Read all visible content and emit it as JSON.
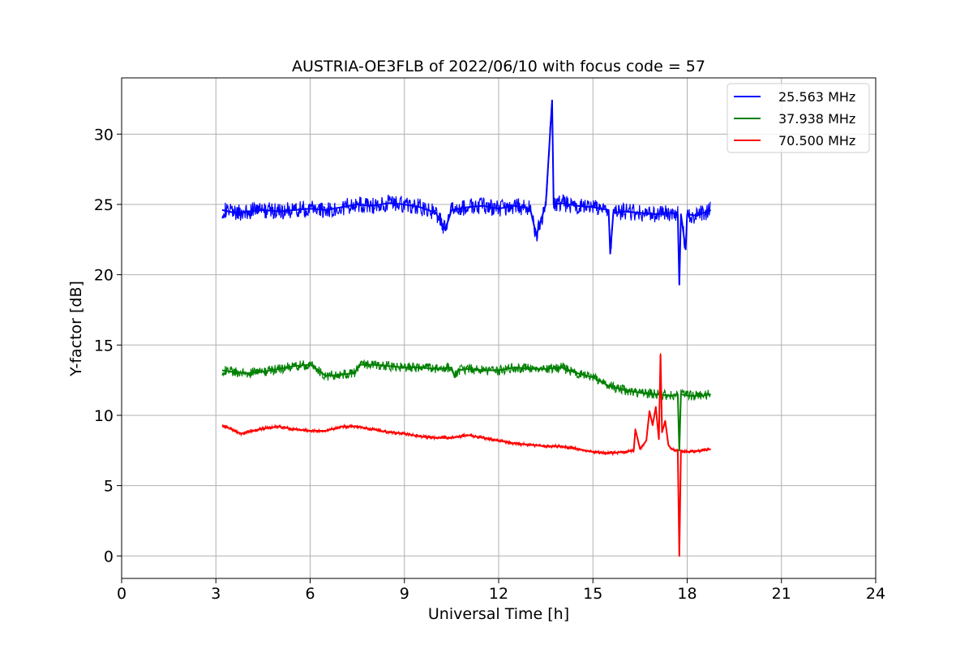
{
  "chart_data": {
    "type": "line",
    "title": "AUSTRIA-OE3FLB of 2022/06/10 with focus code = 57",
    "xlabel": "Universal Time [h]",
    "ylabel": "Y-factor [dB]",
    "xlim": [
      0,
      24
    ],
    "ylim": [
      -1.6,
      34
    ],
    "xticks": [
      0,
      3,
      6,
      9,
      12,
      15,
      18,
      21,
      24
    ],
    "yticks": [
      0,
      5,
      10,
      15,
      20,
      25,
      30
    ],
    "grid": true,
    "legend_position": "top-right",
    "series": [
      {
        "name": "25.563 MHz",
        "color": "#0000ff",
        "x": [
          3.2,
          3.6,
          4.0,
          4.5,
          5.0,
          5.5,
          6.0,
          6.5,
          7.0,
          7.5,
          8.0,
          8.5,
          9.0,
          9.5,
          10.0,
          10.3,
          10.5,
          11.0,
          11.5,
          12.0,
          12.5,
          13.0,
          13.2,
          13.5,
          13.7,
          13.75,
          14.0,
          14.5,
          15.0,
          15.5,
          15.55,
          15.65,
          16.0,
          16.5,
          17.0,
          17.5,
          17.7,
          17.75,
          17.8,
          17.95,
          18.0,
          18.3,
          18.75
        ],
        "y": [
          24.6,
          24.4,
          24.5,
          24.6,
          24.5,
          24.6,
          24.7,
          24.6,
          24.8,
          25.0,
          24.9,
          25.1,
          25.0,
          24.8,
          24.4,
          23.2,
          24.6,
          24.8,
          24.9,
          24.7,
          24.9,
          24.7,
          22.8,
          25.0,
          32.4,
          25.0,
          25.1,
          24.9,
          24.8,
          24.6,
          21.5,
          24.4,
          24.5,
          24.4,
          24.3,
          24.4,
          24.3,
          19.3,
          24.3,
          21.8,
          24.3,
          24.2,
          24.6
        ]
      },
      {
        "name": "37.938 MHz",
        "color": "#008000",
        "x": [
          3.2,
          3.5,
          4.0,
          4.5,
          5.0,
          5.5,
          6.0,
          6.2,
          6.5,
          7.0,
          7.4,
          7.6,
          8.0,
          8.5,
          9.0,
          9.5,
          10.0,
          10.5,
          10.6,
          10.7,
          11.0,
          11.5,
          12.0,
          12.5,
          13.0,
          13.5,
          14.0,
          14.5,
          15.0,
          15.5,
          16.0,
          16.5,
          17.0,
          17.5,
          17.7,
          17.75,
          17.8,
          18.0,
          18.5,
          18.75
        ],
        "y": [
          13.2,
          13.1,
          13.0,
          13.1,
          13.3,
          13.5,
          13.6,
          13.3,
          12.8,
          12.9,
          13.0,
          13.6,
          13.6,
          13.5,
          13.4,
          13.4,
          13.3,
          13.4,
          12.7,
          13.2,
          13.3,
          13.2,
          13.2,
          13.4,
          13.3,
          13.3,
          13.4,
          13.0,
          12.7,
          12.1,
          11.8,
          11.6,
          11.5,
          11.4,
          11.5,
          7.5,
          11.5,
          11.4,
          11.4,
          11.5
        ]
      },
      {
        "name": "70.500 MHz",
        "color": "#ff0000",
        "x": [
          3.2,
          3.5,
          3.8,
          4.2,
          4.6,
          5.0,
          5.5,
          6.0,
          6.5,
          7.0,
          7.5,
          8.0,
          8.5,
          9.0,
          9.5,
          10.0,
          10.5,
          11.0,
          11.5,
          12.0,
          12.5,
          13.0,
          13.5,
          14.0,
          14.5,
          15.0,
          15.5,
          16.0,
          16.3,
          16.35,
          16.5,
          16.7,
          16.8,
          16.9,
          17.0,
          17.1,
          17.15,
          17.2,
          17.3,
          17.4,
          17.5,
          17.7,
          17.75,
          17.8,
          18.0,
          18.5,
          18.75
        ],
        "y": [
          9.3,
          9.0,
          8.7,
          8.9,
          9.1,
          9.2,
          9.0,
          8.9,
          8.9,
          9.2,
          9.2,
          9.0,
          8.8,
          8.7,
          8.5,
          8.4,
          8.4,
          8.6,
          8.4,
          8.2,
          8.0,
          7.9,
          7.8,
          7.8,
          7.6,
          7.4,
          7.3,
          7.4,
          7.5,
          9.0,
          7.6,
          8.2,
          10.3,
          9.3,
          10.6,
          8.3,
          14.3,
          8.8,
          9.6,
          7.9,
          7.6,
          7.5,
          0.0,
          7.5,
          7.4,
          7.5,
          7.6
        ]
      }
    ]
  }
}
